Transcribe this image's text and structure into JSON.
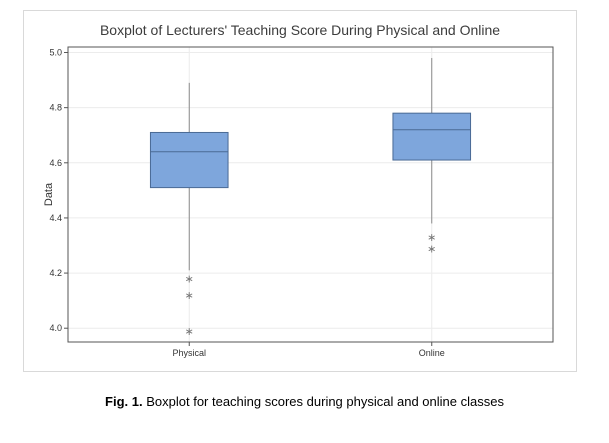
{
  "caption": {
    "label": "Fig. 1.",
    "text": "Boxplot for teaching scores during physical and online classes"
  },
  "colors": {
    "box_fill": "#7ea6dc",
    "box_stroke": "#4a6a94",
    "whisker": "#8a8a8a",
    "outlier": "#777777",
    "grid": "#ececec",
    "axis": "#555555",
    "title": "#3c3c3c"
  },
  "chart_data": {
    "type": "boxplot",
    "title": "Boxplot of Lecturers' Teaching Score During Physical and Online",
    "xlabel": "",
    "ylabel": "Data",
    "ylim": [
      3.95,
      5.02
    ],
    "yticks": [
      "4.0",
      "4.2",
      "4.4",
      "4.6",
      "4.8",
      "5.0"
    ],
    "grid": true,
    "categories": [
      "Physical",
      "Online"
    ],
    "boxes": [
      {
        "name": "Physical",
        "whisker_low": 4.21,
        "q1": 4.51,
        "median": 4.64,
        "q3": 4.71,
        "whisker_high": 4.89,
        "outliers": [
          4.18,
          4.12,
          3.99
        ]
      },
      {
        "name": "Online",
        "whisker_low": 4.38,
        "q1": 4.61,
        "median": 4.72,
        "q3": 4.78,
        "whisker_high": 4.98,
        "outliers": [
          4.33,
          4.29
        ]
      }
    ]
  }
}
